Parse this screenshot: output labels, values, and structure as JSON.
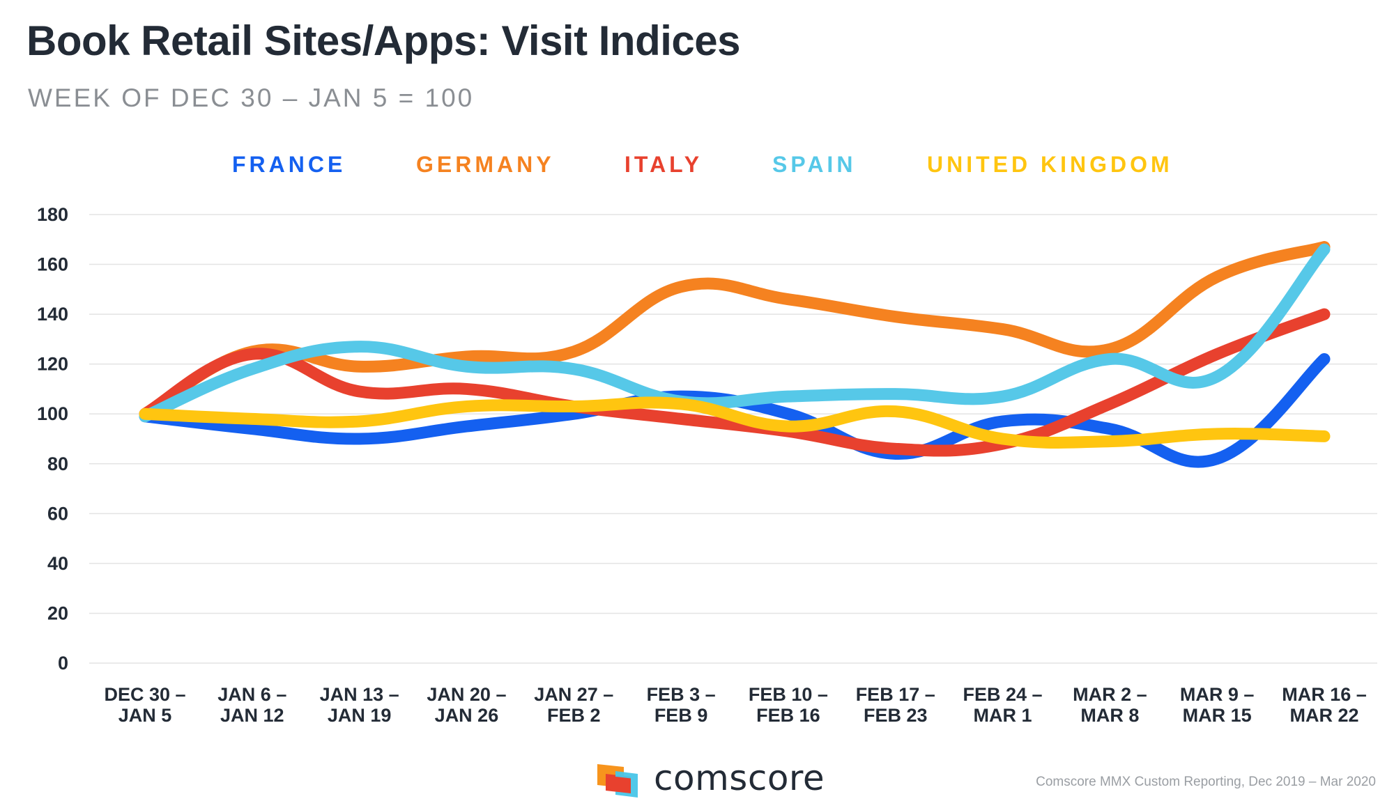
{
  "header": {
    "title": "Book Retail Sites/Apps: Visit Indices",
    "subtitle": "WEEK OF DEC 30 – JAN 5 = 100"
  },
  "footer": {
    "brand": "comscore",
    "source": "Comscore MMX Custom Reporting, Dec 2019 – Mar 2020"
  },
  "colors": {
    "france": "#1460f0",
    "germany": "#f58220",
    "italy": "#e8412e",
    "spain": "#56c8e8",
    "uk": "#ffc510",
    "grid": "#e3e3e3",
    "logo_orange": "#f7941d",
    "logo_red": "#e8412e",
    "logo_cyan": "#48c5e8"
  },
  "chart_data": {
    "type": "line",
    "title": "Book Retail Sites/Apps: Visit Indices",
    "subtitle": "WEEK OF DEC 30 – JAN 5 = 100",
    "categories": [
      [
        "DEC 30 –",
        "JAN 5"
      ],
      [
        "JAN 6 –",
        "JAN 12"
      ],
      [
        "JAN 13 –",
        "JAN 19"
      ],
      [
        "JAN 20 –",
        "JAN 26"
      ],
      [
        "JAN 27 –",
        "FEB 2"
      ],
      [
        "FEB 3 –",
        "FEB 9"
      ],
      [
        "FEB 10 –",
        "FEB 16"
      ],
      [
        "FEB 17 –",
        "FEB 23"
      ],
      [
        "FEB 24 –",
        "MAR 1"
      ],
      [
        "MAR 2 –",
        "MAR 8"
      ],
      [
        "MAR 9 –",
        "MAR 15"
      ],
      [
        "MAR 16 –",
        "MAR 22"
      ]
    ],
    "ylim": [
      0,
      180
    ],
    "yticks": [
      0,
      20,
      40,
      60,
      80,
      100,
      120,
      140,
      160,
      180
    ],
    "grid": true,
    "legend": "top-center",
    "series": [
      {
        "name": "FRANCE",
        "color": "#1460f0",
        "values": [
          99,
          94,
          90,
          95,
          100,
          107,
          100,
          84,
          97,
          94,
          82,
          122
        ]
      },
      {
        "name": "GERMANY",
        "color": "#f58220",
        "values": [
          100,
          125,
          119,
          123,
          125,
          151,
          146,
          139,
          134,
          126,
          155,
          167
        ]
      },
      {
        "name": "ITALY",
        "color": "#e8412e",
        "values": [
          100,
          124,
          109,
          110,
          103,
          98,
          93,
          86,
          88,
          104,
          124,
          140
        ]
      },
      {
        "name": "SPAIN",
        "color": "#56c8e8",
        "values": [
          99,
          118,
          127,
          119,
          118,
          105,
          107,
          108,
          107,
          122,
          115,
          166
        ]
      },
      {
        "name": "UNITED KINGDOM",
        "color": "#ffc510",
        "values": [
          100,
          98,
          97,
          103,
          103,
          104,
          95,
          101,
          90,
          89,
          92,
          91
        ]
      }
    ]
  }
}
